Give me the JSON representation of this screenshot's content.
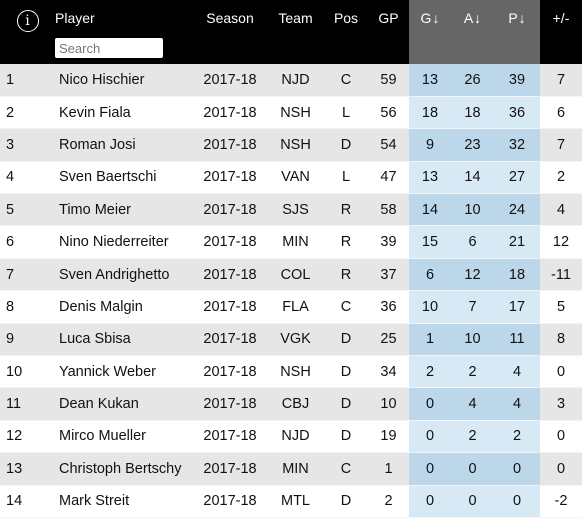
{
  "header": {
    "info_icon": "ⓘ",
    "player": "Player",
    "season": "Season",
    "team": "Team",
    "pos": "Pos",
    "gp": "GP",
    "g": "G",
    "a": "A",
    "p": "P",
    "plus_minus": "+/-",
    "sort_arrow": "↓"
  },
  "search": {
    "placeholder": "Search",
    "value": ""
  },
  "rows": [
    {
      "rank": "1",
      "player": "Nico Hischier",
      "season": "2017-18",
      "team": "NJD",
      "pos": "C",
      "gp": "59",
      "g": "13",
      "a": "26",
      "p": "39",
      "pm": "7"
    },
    {
      "rank": "2",
      "player": "Kevin Fiala",
      "season": "2017-18",
      "team": "NSH",
      "pos": "L",
      "gp": "56",
      "g": "18",
      "a": "18",
      "p": "36",
      "pm": "6"
    },
    {
      "rank": "3",
      "player": "Roman Josi",
      "season": "2017-18",
      "team": "NSH",
      "pos": "D",
      "gp": "54",
      "g": "9",
      "a": "23",
      "p": "32",
      "pm": "7"
    },
    {
      "rank": "4",
      "player": "Sven Baertschi",
      "season": "2017-18",
      "team": "VAN",
      "pos": "L",
      "gp": "47",
      "g": "13",
      "a": "14",
      "p": "27",
      "pm": "2"
    },
    {
      "rank": "5",
      "player": "Timo Meier",
      "season": "2017-18",
      "team": "SJS",
      "pos": "R",
      "gp": "58",
      "g": "14",
      "a": "10",
      "p": "24",
      "pm": "4"
    },
    {
      "rank": "6",
      "player": "Nino Niederreiter",
      "season": "2017-18",
      "team": "MIN",
      "pos": "R",
      "gp": "39",
      "g": "15",
      "a": "6",
      "p": "21",
      "pm": "12"
    },
    {
      "rank": "7",
      "player": "Sven Andrighetto",
      "season": "2017-18",
      "team": "COL",
      "pos": "R",
      "gp": "37",
      "g": "6",
      "a": "12",
      "p": "18",
      "pm": "-11"
    },
    {
      "rank": "8",
      "player": "Denis Malgin",
      "season": "2017-18",
      "team": "FLA",
      "pos": "C",
      "gp": "36",
      "g": "10",
      "a": "7",
      "p": "17",
      "pm": "5"
    },
    {
      "rank": "9",
      "player": "Luca Sbisa",
      "season": "2017-18",
      "team": "VGK",
      "pos": "D",
      "gp": "25",
      "g": "1",
      "a": "10",
      "p": "11",
      "pm": "8"
    },
    {
      "rank": "10",
      "player": "Yannick Weber",
      "season": "2017-18",
      "team": "NSH",
      "pos": "D",
      "gp": "34",
      "g": "2",
      "a": "2",
      "p": "4",
      "pm": "0"
    },
    {
      "rank": "11",
      "player": "Dean Kukan",
      "season": "2017-18",
      "team": "CBJ",
      "pos": "D",
      "gp": "10",
      "g": "0",
      "a": "4",
      "p": "4",
      "pm": "3"
    },
    {
      "rank": "12",
      "player": "Mirco Mueller",
      "season": "2017-18",
      "team": "NJD",
      "pos": "D",
      "gp": "19",
      "g": "0",
      "a": "2",
      "p": "2",
      "pm": "0"
    },
    {
      "rank": "13",
      "player": "Christoph Bertschy",
      "season": "2017-18",
      "team": "MIN",
      "pos": "C",
      "gp": "1",
      "g": "0",
      "a": "0",
      "p": "0",
      "pm": "0"
    },
    {
      "rank": "14",
      "player": "Mark Streit",
      "season": "2017-18",
      "team": "MTL",
      "pos": "D",
      "gp": "2",
      "g": "0",
      "a": "0",
      "p": "0",
      "pm": "-2"
    }
  ]
}
